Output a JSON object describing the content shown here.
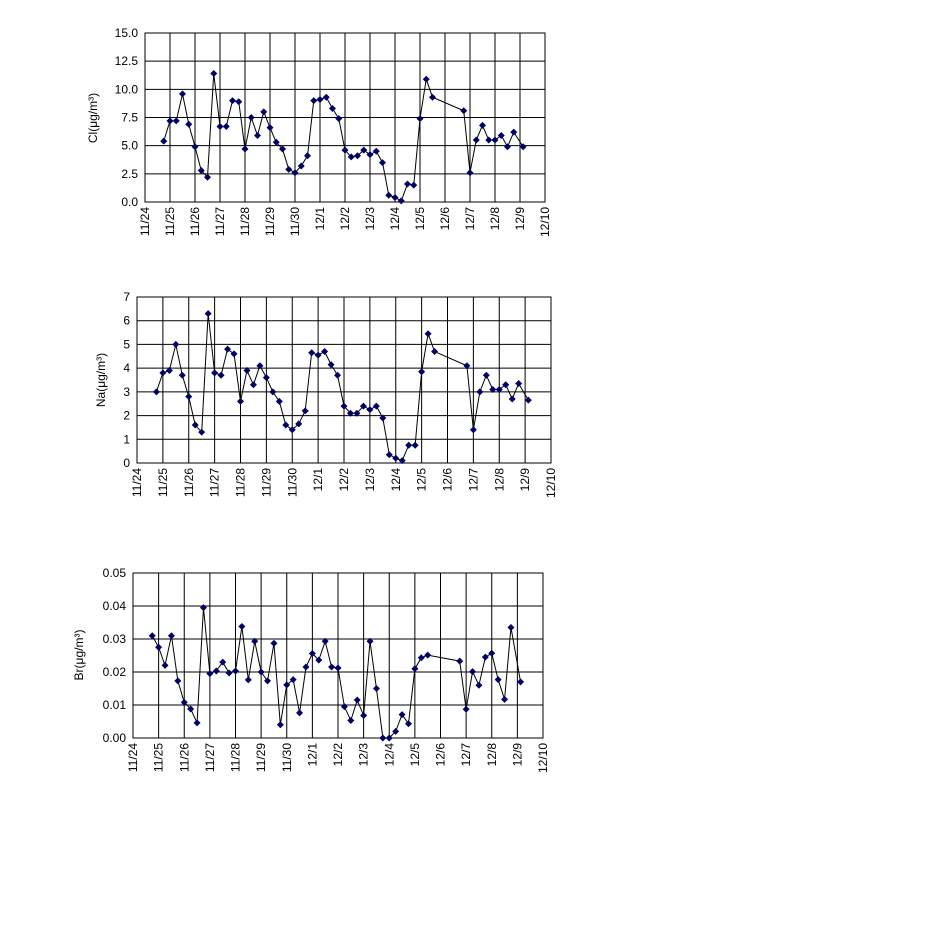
{
  "chart_data": [
    {
      "type": "line",
      "ylabel": "Cl(μg/m³)",
      "ylim": [
        0,
        15
      ],
      "yticks": [
        "0.0",
        "2.5",
        "5.0",
        "7.5",
        "10.0",
        "12.5",
        "15.0"
      ],
      "xlim": [
        "11/24",
        "12/10"
      ],
      "xticks": [
        "11/24",
        "11/25",
        "11/26",
        "11/27",
        "11/28",
        "11/29",
        "11/30",
        "12/1",
        "12/2",
        "12/3",
        "12/4",
        "12/5",
        "12/6",
        "12/7",
        "12/8",
        "12/9",
        "12/10"
      ],
      "grid": true,
      "line_color": "#000000",
      "marker_color": "#000066",
      "marker": "diamond",
      "x": [
        "11/24 18:00",
        "11/25 00:00",
        "11/25 06:00",
        "11/25 12:00",
        "11/25 18:00",
        "11/26 00:00",
        "11/26 06:00",
        "11/26 12:00",
        "11/26 18:00",
        "11/27 00:00",
        "11/27 06:00",
        "11/27 12:00",
        "11/27 18:00",
        "11/28 00:00",
        "11/28 06:00",
        "11/28 12:00",
        "11/28 18:00",
        "11/29 00:00",
        "11/29 06:00",
        "11/29 12:00",
        "11/29 18:00",
        "11/30 00:00",
        "11/30 06:00",
        "11/30 12:00",
        "11/30 18:00",
        "12/1 00:00",
        "12/1 06:00",
        "12/1 12:00",
        "12/1 18:00",
        "12/2 00:00",
        "12/2 06:00",
        "12/2 12:00",
        "12/2 18:00",
        "12/3 00:00",
        "12/3 06:00",
        "12/3 12:00",
        "12/3 18:00",
        "12/4 00:00",
        "12/4 06:00",
        "12/4 12:00",
        "12/4 18:00",
        "12/5 00:00",
        "12/5 06:00",
        "12/5 12:00",
        "12/6 18:00",
        "12/7 00:00",
        "12/7 06:00",
        "12/7 12:00",
        "12/7 18:00",
        "12/8 00:00",
        "12/8 06:00",
        "12/8 12:00",
        "12/8 18:00",
        "12/9 03:00"
      ],
      "y": [
        5.4,
        7.2,
        7.2,
        9.6,
        6.9,
        4.9,
        2.8,
        2.2,
        11.4,
        6.7,
        6.7,
        9.0,
        8.9,
        4.7,
        7.5,
        5.9,
        8.0,
        6.6,
        5.3,
        4.7,
        2.9,
        2.6,
        3.2,
        4.1,
        9.0,
        9.1,
        9.3,
        8.3,
        7.4,
        4.6,
        4.0,
        4.1,
        4.6,
        4.2,
        4.5,
        3.5,
        0.6,
        0.4,
        0.1,
        1.6,
        1.5,
        7.4,
        10.9,
        9.3,
        8.1,
        2.6,
        5.5,
        6.8,
        5.5,
        5.5,
        5.9,
        4.9,
        6.2,
        4.9
      ]
    },
    {
      "type": "line",
      "ylabel": "Na(μg/m³)",
      "ylim": [
        0,
        7
      ],
      "yticks": [
        "0",
        "1",
        "2",
        "3",
        "4",
        "5",
        "6",
        "7"
      ],
      "xlim": [
        "11/24",
        "12/10"
      ],
      "xticks": [
        "11/24",
        "11/25",
        "11/26",
        "11/27",
        "11/28",
        "11/29",
        "11/30",
        "12/1",
        "12/2",
        "12/3",
        "12/4",
        "12/5",
        "12/6",
        "12/7",
        "12/8",
        "12/9",
        "12/10"
      ],
      "grid": true,
      "line_color": "#000000",
      "marker_color": "#000066",
      "marker": "diamond",
      "x": [
        "11/24 18:00",
        "11/25 00:00",
        "11/25 06:00",
        "11/25 12:00",
        "11/25 18:00",
        "11/26 00:00",
        "11/26 06:00",
        "11/26 12:00",
        "11/26 18:00",
        "11/27 00:00",
        "11/27 06:00",
        "11/27 12:00",
        "11/27 18:00",
        "11/28 00:00",
        "11/28 06:00",
        "11/28 12:00",
        "11/28 18:00",
        "11/29 00:00",
        "11/29 06:00",
        "11/29 12:00",
        "11/29 18:00",
        "11/30 00:00",
        "11/30 06:00",
        "11/30 12:00",
        "11/30 18:00",
        "12/1 00:00",
        "12/1 06:00",
        "12/1 12:00",
        "12/1 18:00",
        "12/2 00:00",
        "12/2 06:00",
        "12/2 12:00",
        "12/2 18:00",
        "12/3 00:00",
        "12/3 06:00",
        "12/3 12:00",
        "12/3 18:00",
        "12/4 00:00",
        "12/4 06:00",
        "12/4 12:00",
        "12/4 18:00",
        "12/5 00:00",
        "12/5 06:00",
        "12/5 12:00",
        "12/6 18:00",
        "12/7 00:00",
        "12/7 06:00",
        "12/7 12:00",
        "12/7 18:00",
        "12/8 00:00",
        "12/8 06:00",
        "12/8 12:00",
        "12/8 18:00",
        "12/9 03:00"
      ],
      "y": [
        3.0,
        3.8,
        3.9,
        5.0,
        3.7,
        2.8,
        1.6,
        1.3,
        6.3,
        3.8,
        3.7,
        4.8,
        4.6,
        2.6,
        3.9,
        3.3,
        4.1,
        3.6,
        3.0,
        2.6,
        1.6,
        1.4,
        1.65,
        2.2,
        4.65,
        4.55,
        4.7,
        4.15,
        3.7,
        2.4,
        2.1,
        2.1,
        2.4,
        2.25,
        2.4,
        1.9,
        0.35,
        0.2,
        0.1,
        0.75,
        0.75,
        3.85,
        5.45,
        4.7,
        4.1,
        1.4,
        3.0,
        3.7,
        3.1,
        3.1,
        3.3,
        2.7,
        3.35,
        2.65
      ]
    },
    {
      "type": "line",
      "ylabel": "Br(μg/m³)",
      "ylim": [
        0,
        0.05
      ],
      "yticks": [
        "0.00",
        "0.01",
        "0.02",
        "0.03",
        "0.04",
        "0.05"
      ],
      "xlim": [
        "11/24",
        "12/10"
      ],
      "xticks": [
        "11/24",
        "11/25",
        "11/26",
        "11/27",
        "11/28",
        "11/29",
        "11/30",
        "12/1",
        "12/2",
        "12/3",
        "12/4",
        "12/5",
        "12/6",
        "12/7",
        "12/8",
        "12/9",
        "12/10"
      ],
      "grid": true,
      "line_color": "#000000",
      "marker_color": "#000066",
      "marker": "diamond",
      "x": [
        "11/24 18:00",
        "11/25 00:00",
        "11/25 06:00",
        "11/25 12:00",
        "11/25 18:00",
        "11/26 00:00",
        "11/26 06:00",
        "11/26 12:00",
        "11/26 18:00",
        "11/27 00:00",
        "11/27 06:00",
        "11/27 12:00",
        "11/27 18:00",
        "11/28 00:00",
        "11/28 06:00",
        "11/28 12:00",
        "11/28 18:00",
        "11/29 00:00",
        "11/29 06:00",
        "11/29 12:00",
        "11/29 18:00",
        "11/30 00:00",
        "11/30 06:00",
        "11/30 12:00",
        "11/30 18:00",
        "12/1 00:00",
        "12/1 06:00",
        "12/1 12:00",
        "12/1 18:00",
        "12/2 00:00",
        "12/2 06:00",
        "12/2 12:00",
        "12/2 18:00",
        "12/3 00:00",
        "12/3 06:00",
        "12/3 12:00",
        "12/3 18:00",
        "12/4 00:00",
        "12/4 06:00",
        "12/4 12:00",
        "12/4 18:00",
        "12/5 00:00",
        "12/5 06:00",
        "12/5 12:00",
        "12/6 18:00",
        "12/7 00:00",
        "12/7 06:00",
        "12/7 12:00",
        "12/7 18:00",
        "12/8 00:00",
        "12/8 06:00",
        "12/8 12:00",
        "12/8 18:00",
        "12/9 03:00"
      ],
      "y": [
        0.031,
        0.0275,
        0.022,
        0.031,
        0.0173,
        0.0108,
        0.0088,
        0.0046,
        0.0395,
        0.0195,
        0.0203,
        0.023,
        0.0197,
        0.0203,
        0.0338,
        0.0176,
        0.0293,
        0.02,
        0.0173,
        0.0287,
        0.004,
        0.0161,
        0.0177,
        0.0076,
        0.0215,
        0.0256,
        0.0236,
        0.0293,
        0.0215,
        0.0212,
        0.0095,
        0.0053,
        0.0115,
        0.0068,
        0.0293,
        0.015,
        0.0,
        0.0,
        0.002,
        0.0071,
        0.0043,
        0.021,
        0.0243,
        0.0251,
        0.0233,
        0.0087,
        0.0201,
        0.016,
        0.0245,
        0.0257,
        0.0177,
        0.0117,
        0.0335,
        0.017
      ]
    }
  ]
}
